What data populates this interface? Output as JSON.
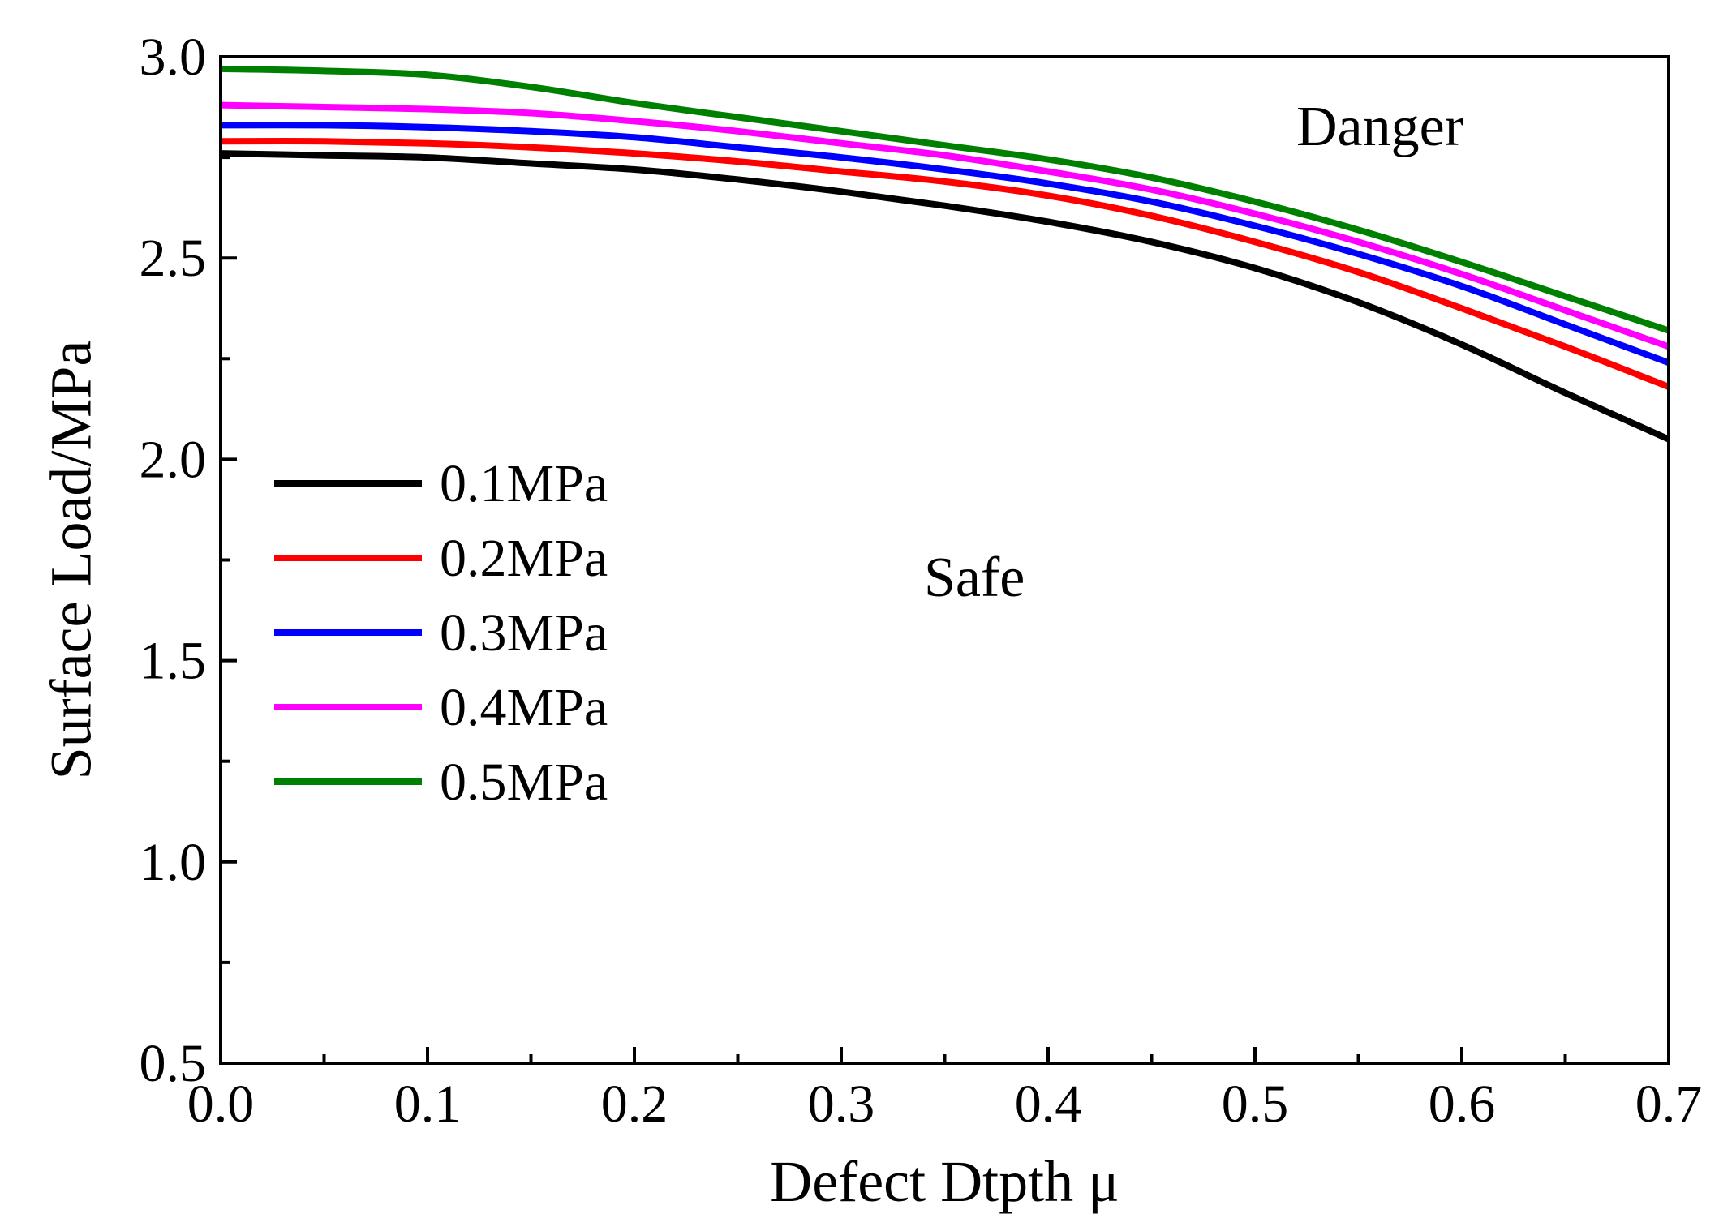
{
  "chart_data": {
    "type": "line",
    "title": "",
    "xlabel": "Defect Dtpth μ",
    "ylabel": "Surface Load/MPa",
    "xlim": [
      0.0,
      0.7
    ],
    "ylim": [
      0.5,
      3.0
    ],
    "xticks": [
      "0.0",
      "0.1",
      "0.2",
      "0.3",
      "0.4",
      "0.5",
      "0.6",
      "0.7"
    ],
    "yticks": [
      "0.5",
      "1.0",
      "1.5",
      "2.0",
      "2.5",
      "3.0"
    ],
    "grid": false,
    "legend_position": "left-middle",
    "x": [
      0.0,
      0.05,
      0.1,
      0.15,
      0.2,
      0.25,
      0.3,
      0.35,
      0.4,
      0.45,
      0.5,
      0.55,
      0.6,
      0.65,
      0.7
    ],
    "series": [
      {
        "name": "0.1MPa",
        "color": "#000000",
        "values": [
          2.76,
          2.755,
          2.75,
          2.735,
          2.72,
          2.695,
          2.665,
          2.63,
          2.59,
          2.54,
          2.475,
          2.39,
          2.285,
          2.165,
          2.05
        ]
      },
      {
        "name": "0.2MPa",
        "color": "#ff0000",
        "values": [
          2.79,
          2.79,
          2.785,
          2.775,
          2.76,
          2.74,
          2.715,
          2.69,
          2.655,
          2.605,
          2.54,
          2.465,
          2.375,
          2.28,
          2.18
        ]
      },
      {
        "name": "0.3MPa",
        "color": "#0000ff",
        "values": [
          2.83,
          2.83,
          2.825,
          2.815,
          2.8,
          2.775,
          2.75,
          2.72,
          2.685,
          2.64,
          2.58,
          2.51,
          2.43,
          2.335,
          2.24
        ]
      },
      {
        "name": "0.4MPa",
        "color": "#ff00ff",
        "values": [
          2.88,
          2.875,
          2.87,
          2.86,
          2.84,
          2.815,
          2.785,
          2.755,
          2.715,
          2.67,
          2.61,
          2.54,
          2.46,
          2.37,
          2.28
        ]
      },
      {
        "name": "0.5MPa",
        "color": "#008000",
        "values": [
          2.97,
          2.965,
          2.955,
          2.925,
          2.885,
          2.85,
          2.815,
          2.78,
          2.745,
          2.7,
          2.64,
          2.57,
          2.49,
          2.405,
          2.32
        ]
      }
    ],
    "annotations": [
      {
        "text": "Danger",
        "x": 0.52,
        "y": 2.78
      },
      {
        "text": "Safe",
        "x": 0.34,
        "y": 1.66
      }
    ]
  }
}
